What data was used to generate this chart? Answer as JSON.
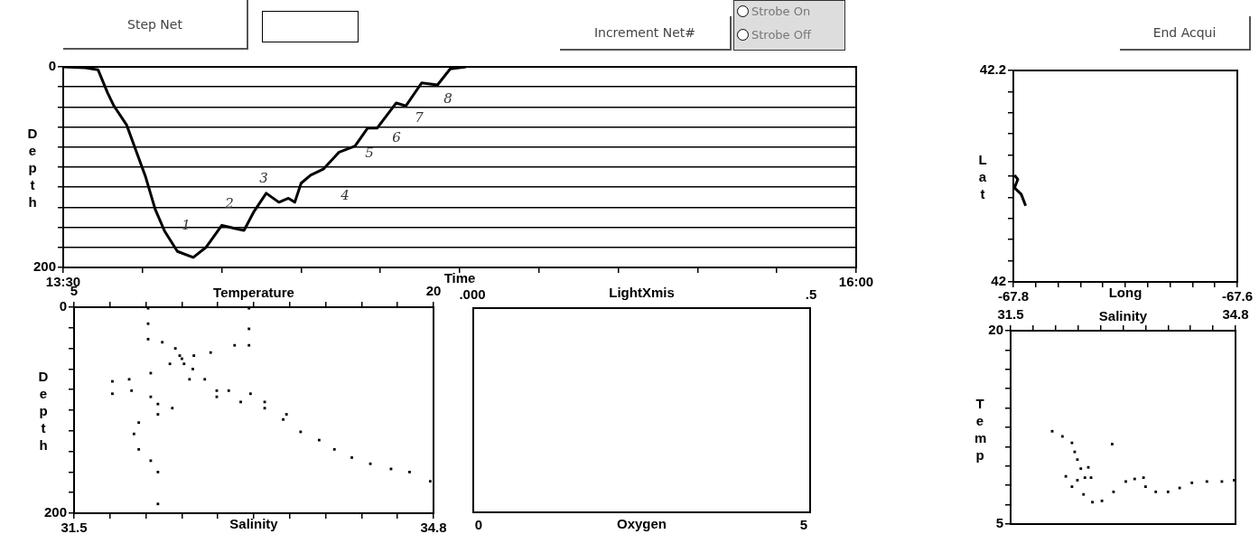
{
  "chart_data": [
    {
      "type": "line",
      "xlabel": "Time",
      "ylabel": "Depth",
      "marker": "none",
      "line_style": "solid",
      "grid": "y",
      "xlim": [
        13.5,
        16
      ],
      "xticks": [
        {
          "value": 13.5,
          "label": "13:30"
        },
        {
          "value": 13.75,
          "label": null
        },
        {
          "value": 14,
          "label": null
        },
        {
          "value": 14.25,
          "label": null
        },
        {
          "value": 14.5,
          "label": null
        },
        {
          "value": 14.75,
          "label": null
        },
        {
          "value": 15,
          "label": null
        },
        {
          "value": 15.25,
          "label": null
        },
        {
          "value": 15.5,
          "label": null
        },
        {
          "value": 15.75,
          "label": null
        },
        {
          "value": 16,
          "label": "16:00"
        }
      ],
      "ylim": [
        200,
        0
      ],
      "yticks": [
        0,
        {
          "value": 20,
          "label": null
        },
        {
          "value": 40,
          "label": null
        },
        {
          "value": 60,
          "label": null
        },
        {
          "value": 80,
          "label": null
        },
        {
          "value": 100,
          "label": null
        },
        {
          "value": 120,
          "label": null
        },
        {
          "value": 140,
          "label": null
        },
        {
          "value": 160,
          "label": null
        },
        {
          "value": 180,
          "label": null
        },
        200
      ],
      "x": [
        13.5,
        13.57,
        13.61,
        13.64,
        13.66,
        13.7,
        13.73,
        13.76,
        13.79,
        13.82,
        13.86,
        13.91,
        13.95,
        14.0,
        14.04,
        14.07,
        14.1,
        14.14,
        14.18,
        14.21,
        14.23,
        14.25,
        14.28,
        14.32,
        14.37,
        14.42,
        14.46,
        14.49,
        14.55,
        14.58,
        14.63,
        14.68,
        14.72,
        14.77
      ],
      "series": [
        {
          "color": "#000000",
          "values": [
            0,
            1,
            3,
            26,
            39,
            58,
            84,
            110,
            142,
            164,
            184,
            190,
            180,
            158,
            161,
            163,
            145,
            126,
            135,
            131,
            135,
            116,
            108,
            102,
            85,
            79,
            61,
            61,
            36,
            39,
            16,
            18,
            2,
            0
          ]
        }
      ],
      "annotations": [
        "1",
        "2",
        "3",
        "4",
        "5",
        "6",
        "7",
        "8"
      ]
    },
    {
      "type": "scatter",
      "xlabel": "Salinity",
      "x2label": "Temperature",
      "ylabel": "Depth",
      "marker": "square",
      "xlim": [
        31.5,
        34.8
      ],
      "xticks": [
        31.5,
        {
          "value": 31.83,
          "label": null
        },
        {
          "value": 32.16,
          "label": null
        },
        {
          "value": 32.49,
          "label": null
        },
        {
          "value": 32.82,
          "label": null
        },
        {
          "value": 33.15,
          "label": null
        },
        {
          "value": 33.48,
          "label": null
        },
        {
          "value": 33.81,
          "label": null
        },
        {
          "value": 34.14,
          "label": null
        },
        {
          "value": 34.47,
          "label": null
        },
        34.8
      ],
      "x2lim": [
        5,
        20
      ],
      "x2ticks": [
        5,
        {
          "value": 6.5,
          "label": null
        },
        {
          "value": 8,
          "label": null
        },
        {
          "value": 9.5,
          "label": null
        },
        {
          "value": 11,
          "label": null
        },
        {
          "value": 12.5,
          "label": null
        },
        {
          "value": 14,
          "label": null
        },
        {
          "value": 15.5,
          "label": null
        },
        {
          "value": 17,
          "label": null
        },
        {
          "value": 18.5,
          "label": null
        },
        20
      ],
      "ylim": [
        200,
        0
      ],
      "yticks": [
        0,
        {
          "value": 20,
          "label": null
        },
        {
          "value": 40,
          "label": null
        },
        {
          "value": 60,
          "label": null
        },
        {
          "value": 80,
          "label": null
        },
        {
          "value": 100,
          "label": null
        },
        {
          "value": 120,
          "label": null
        },
        {
          "value": 140,
          "label": null
        },
        {
          "value": 160,
          "label": null
        },
        {
          "value": 180,
          "label": null
        },
        200
      ],
      "series": [
        {
          "color": "#000000",
          "x": [
            32.18,
            32.18,
            32.18,
            32.31,
            32.43,
            32.47,
            32.51,
            32.59,
            32.7,
            32.81,
            32.92,
            33.12,
            33.25,
            33.45,
            33.42,
            33.58,
            33.75,
            33.89,
            34.05,
            34.22,
            34.41,
            34.58,
            34.77,
            32.56,
            32.81,
            33.03,
            33.25
          ],
          "values": [
            1,
            16,
            31,
            34,
            40,
            47,
            55,
            60,
            70,
            81,
            81,
            84,
            92,
            104,
            109,
            121,
            129,
            138,
            146,
            152,
            157,
            160,
            169,
            70,
            87,
            92,
            98
          ]
        },
        {
          "color": "#000000",
          "axis": "x2",
          "x": [
            12.3,
            12.3,
            12.3,
            11.7,
            10.7,
            10.0,
            9.5,
            9.0,
            8.2,
            7.3,
            6.6,
            6.6,
            7.4,
            8.2,
            8.5,
            9.1,
            8.5,
            7.7,
            7.5,
            7.7,
            8.2,
            8.5,
            8.5
          ],
          "values": [
            1,
            21,
            37,
            37,
            44,
            47,
            50,
            55,
            64,
            70,
            72,
            84,
            81,
            87,
            94,
            98,
            104,
            112,
            123,
            138,
            149,
            160,
            191
          ]
        }
      ]
    },
    {
      "type": "other",
      "xlabel": "Oxygen",
      "x2label": "LightXmis",
      "annotations": [
        ".000",
        ".5",
        "0",
        "5"
      ]
    },
    {
      "type": "line",
      "xlabel": "Long",
      "ylabel": "Lat",
      "marker": "none",
      "line_style": "solid",
      "xlim": [
        -67.8,
        -67.6
      ],
      "xticks": [
        -67.8,
        {
          "value": -67.78,
          "label": null
        },
        {
          "value": -67.76,
          "label": null
        },
        {
          "value": -67.74,
          "label": null
        },
        {
          "value": -67.72,
          "label": null
        },
        {
          "value": -67.7,
          "label": null
        },
        {
          "value": -67.68,
          "label": null
        },
        {
          "value": -67.66,
          "label": null
        },
        {
          "value": -67.64,
          "label": null
        },
        {
          "value": -67.62,
          "label": null
        },
        -67.6
      ],
      "ylim": [
        42,
        42.2
      ],
      "yticks": [
        42,
        {
          "value": 42.02,
          "label": null
        },
        {
          "value": 42.04,
          "label": null
        },
        {
          "value": 42.06,
          "label": null
        },
        {
          "value": 42.08,
          "label": null
        },
        {
          "value": 42.1,
          "label": null
        },
        {
          "value": 42.12,
          "label": null
        },
        {
          "value": 42.14,
          "label": null
        },
        {
          "value": 42.16,
          "label": null
        },
        {
          "value": 42.18,
          "label": null
        },
        42.2
      ],
      "x": [
        -67.799,
        -67.796,
        -67.799,
        -67.793,
        -67.789
      ],
      "series": [
        {
          "color": "#000000",
          "values": [
            42.101,
            42.097,
            42.089,
            42.083,
            42.072
          ]
        }
      ]
    },
    {
      "type": "scatter",
      "xlabel": "Salinity",
      "ylabel": "Temp",
      "marker": "square",
      "xlim": [
        31.5,
        34.8
      ],
      "xticks": [
        31.5,
        {
          "value": 31.83,
          "label": null
        },
        {
          "value": 32.16,
          "label": null
        },
        {
          "value": 32.49,
          "label": null
        },
        {
          "value": 32.82,
          "label": null
        },
        {
          "value": 33.15,
          "label": null
        },
        {
          "value": 33.48,
          "label": null
        },
        {
          "value": 33.81,
          "label": null
        },
        {
          "value": 34.14,
          "label": null
        },
        {
          "value": 34.47,
          "label": null
        },
        34.8
      ],
      "ylim": [
        5,
        20
      ],
      "yticks": [
        5,
        {
          "value": 6.5,
          "label": null
        },
        {
          "value": 8,
          "label": null
        },
        {
          "value": 9.5,
          "label": null
        },
        {
          "value": 11,
          "label": null
        },
        {
          "value": 12.5,
          "label": null
        },
        {
          "value": 14,
          "label": null
        },
        {
          "value": 15.5,
          "label": null
        },
        {
          "value": 17,
          "label": null
        },
        {
          "value": 18.5,
          "label": null
        },
        20
      ],
      "series": [
        {
          "color": "#000000",
          "x": [
            32.11,
            32.26,
            32.4,
            32.44,
            32.48,
            32.53,
            32.59,
            32.48,
            32.31,
            32.4,
            32.57,
            32.7,
            32.84,
            33.01,
            33.19,
            33.32,
            33.45,
            33.48,
            33.63,
            33.81,
            33.98,
            34.16,
            34.38,
            34.6,
            34.78,
            32.99,
            32.68,
            32.64
          ],
          "values": [
            12.2,
            11.8,
            11.3,
            10.6,
            10.0,
            9.3,
            8.6,
            8.4,
            8.7,
            7.9,
            7.3,
            6.7,
            6.8,
            7.5,
            8.3,
            8.5,
            8.6,
            7.9,
            7.5,
            7.5,
            7.8,
            8.2,
            8.3,
            8.3,
            8.4,
            11.2,
            8.6,
            9.4
          ]
        }
      ]
    },
    {
      "type": "other",
      "annotations": [
        "Step Net",
        "Increment Net#",
        "Strobe On",
        "Strobe Off",
        "End Acqui"
      ]
    }
  ]
}
